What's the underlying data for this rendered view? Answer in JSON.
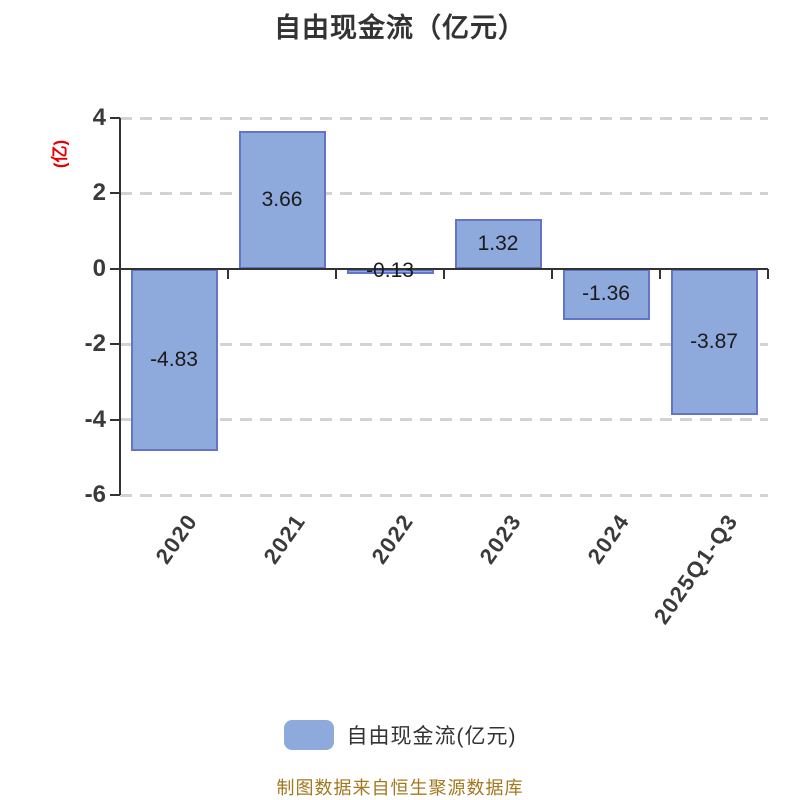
{
  "title": "自由现金流（亿元）",
  "y_axis_label": "(亿)",
  "legend": {
    "label": "自由现金流(亿元)"
  },
  "footer": "制图数据来自恒生聚源数据库",
  "colors": {
    "bar_fill": "#8EA9DB",
    "bar_border": "#6674C8",
    "axis": "#333333",
    "grid": "#D5D2CF",
    "title": "#333333",
    "tick_text": "#3A3A3A",
    "data_label": "#1A1A1A",
    "ylabel": "#E60000",
    "footer": "#A3781F"
  },
  "chart_data": {
    "type": "bar",
    "title": "自由现金流（亿元）",
    "xlabel": "",
    "ylabel": "(亿)",
    "categories": [
      "2020",
      "2021",
      "2022",
      "2023",
      "2024",
      "2025Q1-Q3"
    ],
    "values": [
      -4.83,
      3.66,
      -0.13,
      1.32,
      -1.36,
      -3.87
    ],
    "value_labels": [
      "-4.83",
      "3.66",
      "-0.13",
      "1.32",
      "-1.36",
      "-3.87"
    ],
    "ylim": [
      -6,
      4
    ],
    "yticks": [
      4,
      2,
      0,
      -2,
      -4,
      -6
    ],
    "grid": "horizontal-dashed",
    "legend_position": "bottom",
    "series_name": "自由现金流(亿元)"
  }
}
